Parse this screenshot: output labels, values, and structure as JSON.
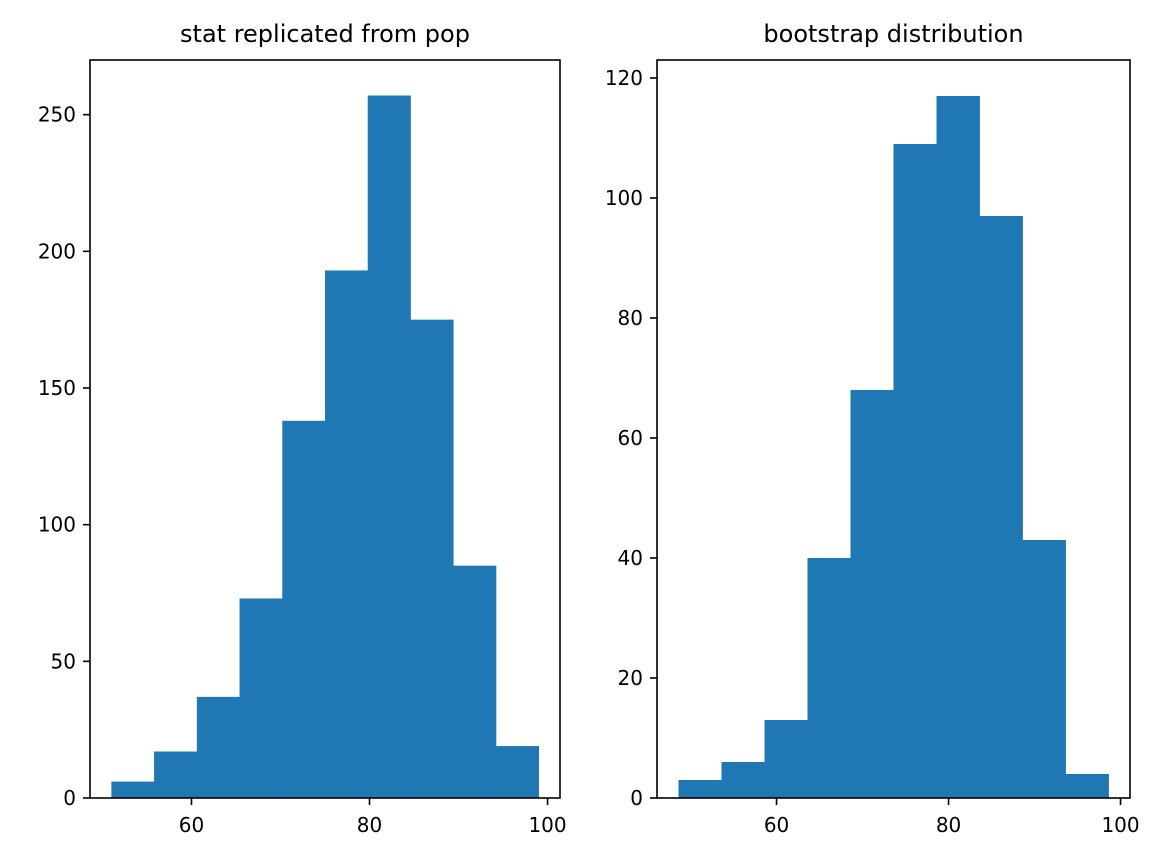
{
  "chart_data": [
    {
      "type": "bar",
      "title": "stat replicated from pop",
      "xlabel": "",
      "ylabel": "",
      "bin_edges": [
        51.0,
        55.8,
        60.6,
        65.4,
        70.2,
        75.0,
        79.8,
        84.6,
        89.4,
        94.2,
        99.0
      ],
      "values": [
        6,
        17,
        37,
        73,
        138,
        193,
        257,
        175,
        85,
        19
      ],
      "xlim": [
        48.6,
        101.4
      ],
      "ylim": [
        0,
        270
      ],
      "xticks": [
        60,
        80,
        100
      ],
      "yticks": [
        0,
        50,
        100,
        150,
        200,
        250
      ],
      "color": "#1f77b4",
      "grid": false
    },
    {
      "type": "bar",
      "title": "bootstrap distribution",
      "xlabel": "",
      "ylabel": "",
      "bin_edges": [
        48.6,
        53.6,
        58.6,
        63.6,
        68.6,
        73.6,
        78.6,
        83.6,
        88.6,
        93.6,
        98.6
      ],
      "values": [
        3,
        6,
        13,
        40,
        68,
        109,
        117,
        97,
        43,
        4
      ],
      "xlim": [
        46.1,
        101.1
      ],
      "ylim": [
        0,
        123
      ],
      "xticks": [
        60,
        80,
        100
      ],
      "yticks": [
        0,
        20,
        40,
        60,
        80,
        100,
        120
      ],
      "color": "#1f77b4",
      "grid": false
    }
  ]
}
